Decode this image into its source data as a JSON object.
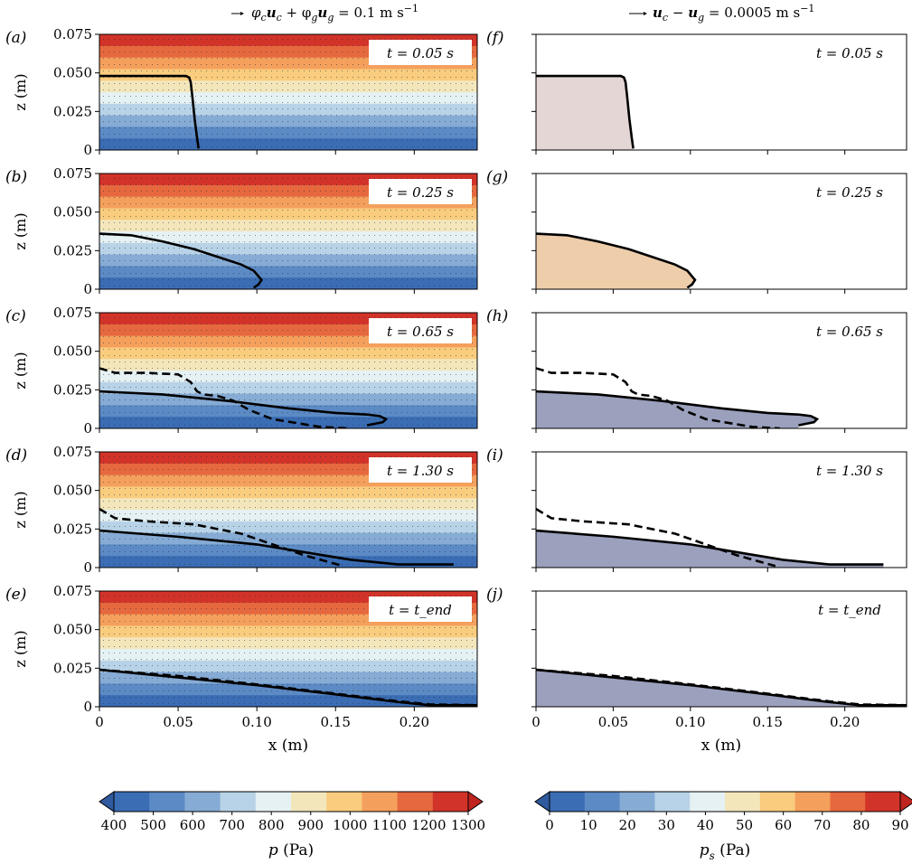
{
  "figure": {
    "left_header": {
      "prefix": "φ",
      "sub_c": "c",
      "u": "u",
      "plus": " + φ",
      "sub_g": "g",
      "eq": " = 0.1 m s",
      "exp": "−1"
    },
    "right_header": {
      "u": "u",
      "sub_c": "c",
      "minus": " − ",
      "sub_g": "g",
      "eq": " = 0.0005 m s",
      "exp": "−1"
    }
  },
  "chart_data": [
    {
      "type": "heatmap",
      "column": "left",
      "variable": "p (Pa)",
      "xlabel": "x (m)",
      "ylabel": "z (m)",
      "xlim": [
        0,
        0.24
      ],
      "ylim": [
        0,
        0.075
      ],
      "xticks": [
        "0",
        "0.05",
        "0.10",
        "0.15",
        "0.20"
      ],
      "yticks": [
        "0",
        "0.025",
        "0.050",
        "0.075"
      ],
      "panels": [
        {
          "label": "(a)",
          "time": "t = 0.05 s",
          "interface": {
            "x": [
              0,
              0.048,
              0.052,
              0.055,
              0.057,
              0.058,
              0.059,
              0.0605,
              0.062,
              0.063
            ],
            "z": [
              0.048,
              0.048,
              0.048,
              0.048,
              0.047,
              0.044,
              0.035,
              0.02,
              0.008,
              0.001
            ]
          }
        },
        {
          "label": "(b)",
          "time": "t = 0.25 s",
          "interface": {
            "x": [
              0,
              0.02,
              0.04,
              0.06,
              0.075,
              0.09,
              0.098,
              0.103,
              0.101,
              0.098
            ],
            "z": [
              0.036,
              0.035,
              0.031,
              0.026,
              0.021,
              0.016,
              0.012,
              0.006,
              0.003,
              0.001
            ]
          }
        },
        {
          "label": "(c)",
          "time": "t = 0.65 s",
          "interface": {
            "x": [
              0,
              0.04,
              0.08,
              0.12,
              0.15,
              0.17,
              0.178,
              0.182,
              0.18,
              0.175,
              0.17
            ],
            "z": [
              0.024,
              0.022,
              0.018,
              0.013,
              0.01,
              0.009,
              0.008,
              0.006,
              0.004,
              0.003,
              0.002
            ]
          },
          "initial_dashed": {
            "x": [
              0,
              0.01,
              0.03,
              0.05,
              0.058,
              0.062,
              0.066,
              0.075,
              0.085,
              0.095,
              0.11,
              0.14,
              0.158
            ],
            "z": [
              0.039,
              0.036,
              0.036,
              0.035,
              0.03,
              0.024,
              0.022,
              0.021,
              0.018,
              0.012,
              0.006,
              0.001,
              0
            ]
          }
        },
        {
          "label": "(d)",
          "time": "t = 1.30 s",
          "interface": {
            "x": [
              0,
              0.05,
              0.1,
              0.13,
              0.16,
              0.19,
              0.21,
              0.225
            ],
            "z": [
              0.024,
              0.02,
              0.015,
              0.01,
              0.005,
              0.002,
              0.002,
              0.002
            ]
          },
          "initial_dashed": {
            "x": [
              0,
              0.01,
              0.03,
              0.06,
              0.09,
              0.11,
              0.13,
              0.155
            ],
            "z": [
              0.038,
              0.032,
              0.03,
              0.028,
              0.022,
              0.015,
              0.008,
              0.001
            ]
          }
        },
        {
          "label": "(e)",
          "time": "t = t_end",
          "interface": {
            "x": [
              0,
              0.05,
              0.1,
              0.15,
              0.19,
              0.21,
              0.24
            ],
            "z": [
              0.024,
              0.019,
              0.014,
              0.008,
              0.003,
              0.001,
              0.001
            ]
          },
          "initial_dashed": {
            "x": [
              0,
              0.05,
              0.1,
              0.15,
              0.19,
              0.21,
              0.24
            ],
            "z": [
              0.024,
              0.02,
              0.0145,
              0.0085,
              0.0035,
              0.0015,
              0.001
            ]
          }
        }
      ],
      "colorbar": {
        "label_main": "p",
        "label_units": "(Pa)",
        "ticks": [
          "400",
          "500",
          "600",
          "700",
          "800",
          "900",
          "1000",
          "1100",
          "1200",
          "1300"
        ],
        "colors": [
          "#3b6db4",
          "#5c8ac4",
          "#86abd4",
          "#b8d3e7",
          "#e6f1f3",
          "#f3e6bb",
          "#f9cc7e",
          "#f4a05c",
          "#e6683e",
          "#d23329"
        ]
      }
    },
    {
      "type": "heatmap",
      "column": "right",
      "variable": "p_s (Pa)",
      "xlabel": "x (m)",
      "xlim": [
        0,
        0.24
      ],
      "ylim": [
        0,
        0.075
      ],
      "xticks": [
        "0",
        "0.05",
        "0.10",
        "0.15",
        "0.20"
      ],
      "panels": [
        {
          "label": "(f)",
          "time": "t = 0.05 s"
        },
        {
          "label": "(g)",
          "time": "t = 0.25 s"
        },
        {
          "label": "(h)",
          "time": "t = 0.65 s"
        },
        {
          "label": "(i)",
          "time": "t = 1.30 s"
        },
        {
          "label": "(j)",
          "time": "t = t_end"
        }
      ],
      "colorbar": {
        "label_main": "p",
        "label_sub": "s",
        "label_units": "(Pa)",
        "ticks": [
          "0",
          "10",
          "20",
          "30",
          "40",
          "50",
          "60",
          "70",
          "80",
          "90"
        ],
        "colors": [
          "#3b6db4",
          "#5c8ac4",
          "#86abd4",
          "#b8d3e7",
          "#e6f1f3",
          "#f3e6bb",
          "#f9cc7e",
          "#f4a05c",
          "#e6683e",
          "#d23329"
        ]
      }
    }
  ]
}
